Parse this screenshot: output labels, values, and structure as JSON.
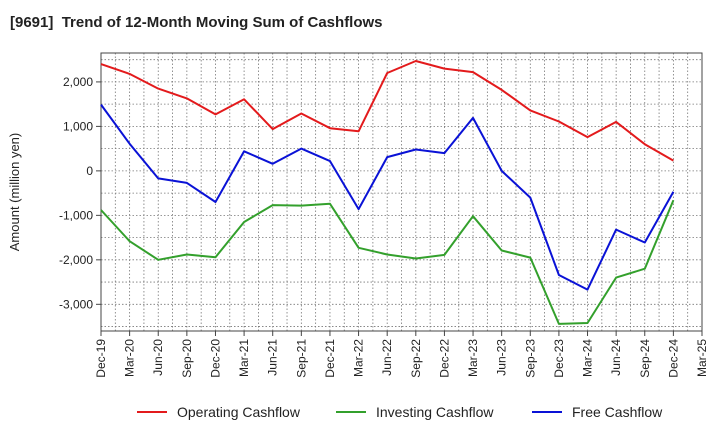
{
  "title": "[9691]  Trend of 12-Month Moving Sum of Cashflows",
  "chart_data": {
    "type": "line",
    "title": "[9691]  Trend of 12-Month Moving Sum of Cashflows",
    "xlabel": "",
    "ylabel": "Amount (million yen)",
    "x_tick_labels": [
      "Dec-19",
      "Mar-20",
      "Jun-20",
      "Sep-20",
      "Dec-20",
      "Mar-21",
      "Jun-21",
      "Sep-21",
      "Dec-21",
      "Mar-22",
      "Jun-22",
      "Sep-22",
      "Dec-22",
      "Mar-23",
      "Jun-23",
      "Sep-23",
      "Dec-23",
      "Mar-24",
      "Jun-24",
      "Sep-24",
      "Dec-24",
      "Mar-25"
    ],
    "categories": [
      "Dec-19",
      "Mar-20",
      "Jun-20",
      "Sep-20",
      "Dec-20",
      "Mar-21",
      "Jun-21",
      "Sep-21",
      "Dec-21",
      "Mar-22",
      "Jun-22",
      "Sep-22",
      "Dec-22",
      "Mar-23",
      "Jun-23",
      "Sep-23",
      "Dec-23",
      "Mar-24",
      "Jun-24",
      "Sep-24",
      "Dec-24"
    ],
    "ylim": [
      -3600,
      2650
    ],
    "y_ticks": [
      2000,
      1000,
      0,
      -1000,
      -2000,
      -3000
    ],
    "y_tick_labels": [
      "2,000",
      "1,000",
      "0",
      "-1,000",
      "-2,000",
      "-3,000"
    ],
    "grid": true,
    "legend_position": "bottom",
    "series": [
      {
        "name": "Operating Cashflow",
        "color": "#e31a1c",
        "values": [
          2400,
          2180,
          1850,
          1630,
          1270,
          1610,
          940,
          1290,
          960,
          890,
          2200,
          2470,
          2300,
          2220,
          1820,
          1360,
          1110,
          760,
          1100,
          600,
          230
        ]
      },
      {
        "name": "Investing Cashflow",
        "color": "#33a02c",
        "values": [
          -880,
          -1580,
          -2000,
          -1880,
          -1940,
          -1150,
          -770,
          -780,
          -740,
          -1730,
          -1880,
          -1970,
          -1890,
          -1020,
          -1790,
          -1950,
          -3440,
          -3420,
          -2400,
          -2200,
          -660
        ]
      },
      {
        "name": "Free Cashflow",
        "color": "#0a12d6",
        "values": [
          1490,
          610,
          -170,
          -270,
          -700,
          440,
          160,
          500,
          220,
          -860,
          310,
          480,
          400,
          1190,
          0,
          -600,
          -2340,
          -2670,
          -1320,
          -1610,
          -470
        ]
      }
    ]
  }
}
